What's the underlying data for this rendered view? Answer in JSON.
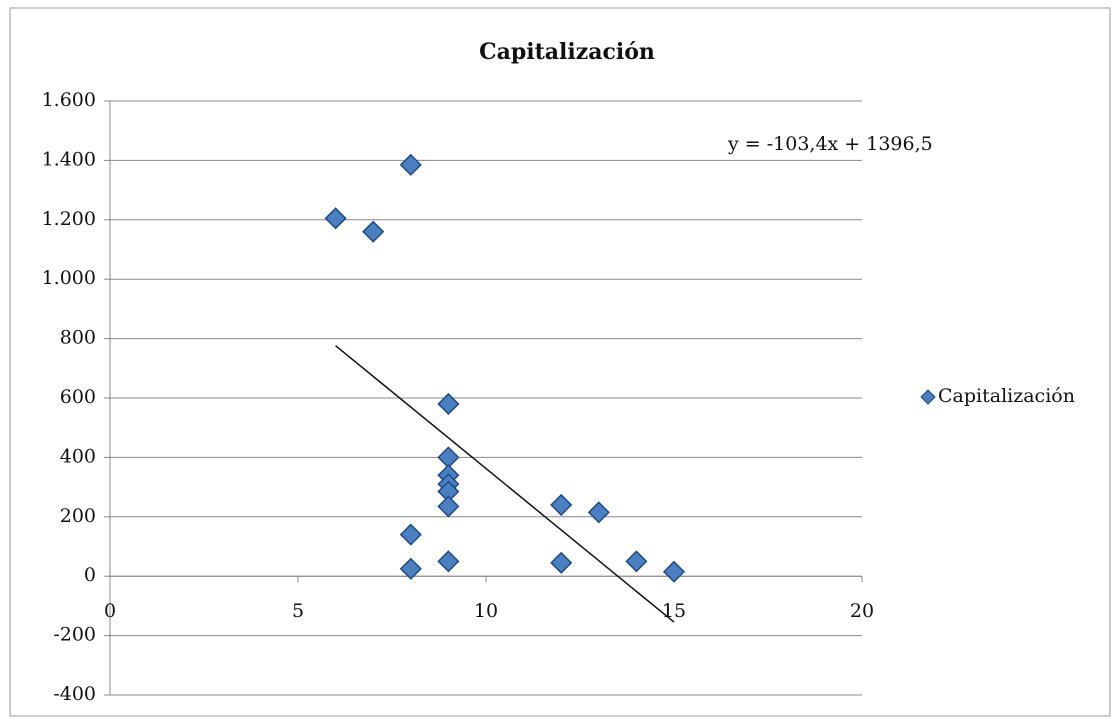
{
  "chart_data": {
    "type": "scatter",
    "title": "Capitalización",
    "series": [
      {
        "name": "Capitalización",
        "color": "#4a7fc1",
        "x": [
          6,
          7,
          8,
          8,
          8,
          9,
          9,
          9,
          9,
          9,
          9,
          9,
          12,
          12,
          13,
          14,
          15
        ],
        "values": [
          1205,
          1160,
          1385,
          140,
          25,
          580,
          400,
          340,
          310,
          285,
          235,
          50,
          240,
          45,
          215,
          50,
          15
        ]
      }
    ],
    "trendline": {
      "label": "y = -103,4x + 1396,5",
      "slope": -103.4,
      "intercept": 1396.5
    },
    "xlim": [
      0,
      20
    ],
    "xticks": [
      0,
      5,
      10,
      15,
      20
    ],
    "ylim": [
      -400,
      1600
    ],
    "yticks": [
      -400,
      -200,
      0,
      200,
      400,
      600,
      800,
      {
        "value": 1000,
        "label": "1.000"
      },
      {
        "value": 1200,
        "label": "1.200"
      },
      {
        "value": 1400,
        "label": "1.400"
      },
      {
        "value": 1600,
        "label": "1.600"
      }
    ],
    "grid": true,
    "legend": "right"
  }
}
